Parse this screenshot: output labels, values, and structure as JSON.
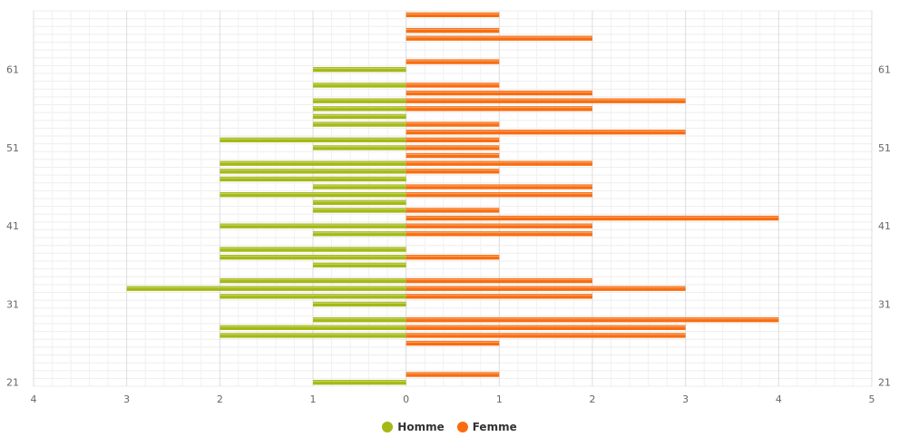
{
  "chart_data": {
    "type": "bar",
    "orientation": "horizontal",
    "y_axis": {
      "min": 21,
      "max": 68,
      "tick_labels": [
        "21",
        "31",
        "41",
        "51",
        "61"
      ]
    },
    "x_axis": {
      "min": -4,
      "max": 5,
      "tick_labels": [
        "4",
        "3",
        "2",
        "1",
        "0",
        "1",
        "2",
        "3",
        "4",
        "5"
      ]
    },
    "grid": true,
    "legend_position": "bottom-center",
    "series": [
      {
        "name": "Homme",
        "color": "#a4b915",
        "direction": "left",
        "points": [
          {
            "age": 21,
            "value": 1
          },
          {
            "age": 27,
            "value": 2
          },
          {
            "age": 28,
            "value": 2
          },
          {
            "age": 29,
            "value": 1
          },
          {
            "age": 31,
            "value": 1
          },
          {
            "age": 32,
            "value": 2
          },
          {
            "age": 33,
            "value": 3
          },
          {
            "age": 34,
            "value": 2
          },
          {
            "age": 36,
            "value": 1
          },
          {
            "age": 37,
            "value": 2
          },
          {
            "age": 38,
            "value": 2
          },
          {
            "age": 40,
            "value": 1
          },
          {
            "age": 41,
            "value": 2
          },
          {
            "age": 43,
            "value": 1
          },
          {
            "age": 44,
            "value": 1
          },
          {
            "age": 45,
            "value": 2
          },
          {
            "age": 46,
            "value": 1
          },
          {
            "age": 47,
            "value": 2
          },
          {
            "age": 48,
            "value": 2
          },
          {
            "age": 49,
            "value": 2
          },
          {
            "age": 51,
            "value": 1
          },
          {
            "age": 52,
            "value": 2
          },
          {
            "age": 54,
            "value": 1
          },
          {
            "age": 55,
            "value": 1
          },
          {
            "age": 56,
            "value": 1
          },
          {
            "age": 57,
            "value": 1
          },
          {
            "age": 59,
            "value": 1
          },
          {
            "age": 61,
            "value": 1
          }
        ]
      },
      {
        "name": "Femme",
        "color": "#f86d10",
        "direction": "right",
        "points": [
          {
            "age": 22,
            "value": 1
          },
          {
            "age": 26,
            "value": 1
          },
          {
            "age": 27,
            "value": 3
          },
          {
            "age": 28,
            "value": 3
          },
          {
            "age": 29,
            "value": 4
          },
          {
            "age": 32,
            "value": 2
          },
          {
            "age": 33,
            "value": 3
          },
          {
            "age": 34,
            "value": 2
          },
          {
            "age": 37,
            "value": 1
          },
          {
            "age": 40,
            "value": 2
          },
          {
            "age": 41,
            "value": 2
          },
          {
            "age": 42,
            "value": 4
          },
          {
            "age": 43,
            "value": 1
          },
          {
            "age": 45,
            "value": 2
          },
          {
            "age": 46,
            "value": 2
          },
          {
            "age": 48,
            "value": 1
          },
          {
            "age": 49,
            "value": 2
          },
          {
            "age": 50,
            "value": 1
          },
          {
            "age": 51,
            "value": 1
          },
          {
            "age": 52,
            "value": 1
          },
          {
            "age": 53,
            "value": 3
          },
          {
            "age": 54,
            "value": 1
          },
          {
            "age": 56,
            "value": 2
          },
          {
            "age": 57,
            "value": 3
          },
          {
            "age": 58,
            "value": 2
          },
          {
            "age": 59,
            "value": 1
          },
          {
            "age": 62,
            "value": 1
          },
          {
            "age": 65,
            "value": 2
          },
          {
            "age": 66,
            "value": 1
          },
          {
            "age": 68,
            "value": 1
          }
        ]
      }
    ]
  },
  "legend": [
    {
      "label": "Homme",
      "color": "#a4b915"
    },
    {
      "label": "Femme",
      "color": "#f86d10"
    }
  ]
}
